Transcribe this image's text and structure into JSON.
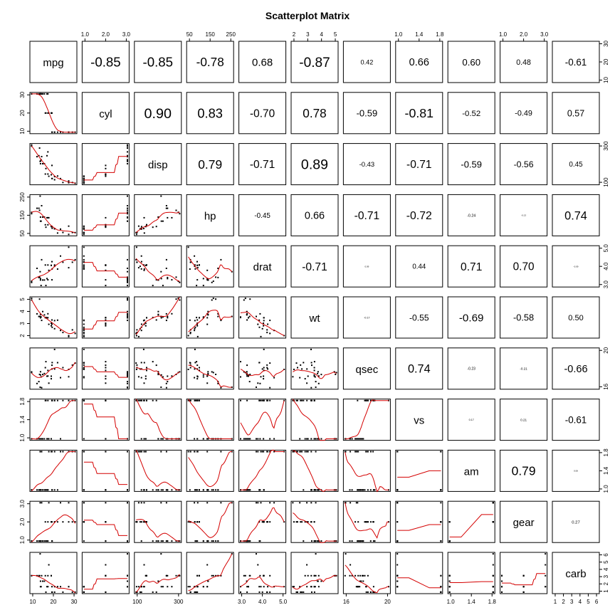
{
  "chart_data": {
    "type": "scatter",
    "title": "Scatterplot Matrix",
    "variables": [
      "mpg",
      "cyl",
      "disp",
      "hp",
      "drat",
      "wt",
      "qsec",
      "vs",
      "am",
      "gear",
      "carb"
    ],
    "correlations": [
      [
        "",
        "-0.85",
        "-0.85",
        "-0.78",
        "0.68",
        "-0.87",
        "0.42",
        "0.66",
        "0.60",
        "0.48",
        "-0.61"
      ],
      [
        "",
        "",
        "0.90",
        "0.83",
        "-0.70",
        "0.78",
        "-0.59",
        "-0.81",
        "-0.52",
        "-0.49",
        "0.57"
      ],
      [
        "",
        "",
        "",
        "0.79",
        "-0.71",
        "0.89",
        "-0.43",
        "-0.71",
        "-0.59",
        "-0.56",
        "0.45"
      ],
      [
        "",
        "",
        "",
        "",
        "-0.45",
        "0.66",
        "-0.71",
        "-0.72",
        "-0.24",
        "-0.13",
        "0.74"
      ],
      [
        "",
        "",
        "",
        "",
        "",
        "-0.71",
        "0.09",
        "0.44",
        "0.71",
        "0.70",
        "-0.09"
      ],
      [
        "",
        "",
        "",
        "",
        "",
        "",
        "-0.17",
        "-0.55",
        "-0.69",
        "-0.58",
        "0.50"
      ],
      [
        "",
        "",
        "",
        "",
        "",
        "",
        "",
        "0.74",
        "-0.23",
        "-0.21",
        "-0.66"
      ],
      [
        "",
        "",
        "",
        "",
        "",
        "",
        "",
        "",
        "0.17",
        "0.21",
        "-0.61"
      ],
      [
        "",
        "",
        "",
        "",
        "",
        "",
        "",
        "",
        "",
        "0.79",
        "0.06"
      ],
      [
        "",
        "",
        "",
        "",
        "",
        "",
        "",
        "",
        "",
        "",
        "0.27"
      ]
    ],
    "axis_ticks": {
      "top": [
        {
          "col": 1,
          "ticks": [
            "1.0",
            "2.0",
            "3.0"
          ]
        },
        {
          "col": 3,
          "ticks": [
            "50",
            "150",
            "250"
          ]
        },
        {
          "col": 5,
          "ticks": [
            "2",
            "3",
            "4",
            "5"
          ]
        },
        {
          "col": 7,
          "ticks": [
            "1.0",
            "1.4",
            "1.8"
          ]
        },
        {
          "col": 9,
          "ticks": [
            "1.0",
            "2.0",
            "3.0"
          ]
        }
      ],
      "bottom": [
        {
          "col": 0,
          "ticks": [
            "10",
            "20",
            "30"
          ]
        },
        {
          "col": 2,
          "ticks": [
            "100",
            "300"
          ]
        },
        {
          "col": 4,
          "ticks": [
            "3.0",
            "4.0",
            "5.0"
          ]
        },
        {
          "col": 6,
          "ticks": [
            "16",
            "20"
          ]
        },
        {
          "col": 8,
          "ticks": [
            "1.0",
            "1.4",
            "1.8"
          ]
        },
        {
          "col": 10,
          "ticks": [
            "1",
            "2",
            "3",
            "4",
            "5",
            "6"
          ]
        }
      ],
      "left": [
        {
          "row": 1,
          "ticks": [
            "10",
            "20",
            "30"
          ]
        },
        {
          "row": 3,
          "ticks": [
            "50",
            "150",
            "250"
          ]
        },
        {
          "row": 5,
          "ticks": [
            "2",
            "3",
            "4",
            "5"
          ]
        },
        {
          "row": 7,
          "ticks": [
            "1.0",
            "1.4",
            "1.8"
          ]
        },
        {
          "row": 9,
          "ticks": [
            "1.0",
            "2.0",
            "3.0"
          ]
        }
      ],
      "right": [
        {
          "row": 0,
          "ticks": [
            "10",
            "20",
            "30"
          ]
        },
        {
          "row": 2,
          "ticks": [
            "100",
            "300"
          ]
        },
        {
          "row": 4,
          "ticks": [
            "3.0",
            "4.0",
            "5.0"
          ]
        },
        {
          "row": 6,
          "ticks": [
            "16",
            "20"
          ]
        },
        {
          "row": 8,
          "ticks": [
            "1.0",
            "1.4",
            "1.8"
          ]
        },
        {
          "row": 10,
          "ticks": [
            "1",
            "2",
            "3",
            "4",
            "5",
            "6"
          ]
        }
      ]
    },
    "colors": {
      "points": "#000000",
      "smoother": "#d40000",
      "frame": "#000000"
    },
    "data": {
      "mpg": [
        21,
        21,
        22.8,
        21.4,
        18.7,
        18.1,
        14.3,
        24.4,
        22.8,
        19.2,
        17.8,
        16.4,
        17.3,
        15.2,
        10.4,
        10.4,
        14.7,
        32.4,
        30.4,
        33.9,
        21.5,
        15.5,
        15.2,
        13.3,
        19.2,
        27.3,
        26,
        30.4,
        15.8,
        19.7,
        15,
        21.4
      ],
      "cyl": [
        6,
        6,
        4,
        6,
        8,
        6,
        8,
        4,
        4,
        6,
        6,
        8,
        8,
        8,
        8,
        8,
        8,
        4,
        4,
        4,
        4,
        8,
        8,
        8,
        8,
        4,
        4,
        4,
        8,
        6,
        8,
        4
      ],
      "disp": [
        160,
        160,
        108,
        258,
        360,
        225,
        360,
        146.7,
        140.8,
        167.6,
        167.6,
        275.8,
        275.8,
        275.8,
        472,
        460,
        440,
        78.7,
        75.7,
        71.1,
        120.1,
        318,
        304,
        350,
        400,
        79,
        120.3,
        95.1,
        351,
        145,
        301,
        121
      ],
      "hp": [
        110,
        110,
        93,
        110,
        175,
        105,
        245,
        62,
        95,
        123,
        123,
        180,
        180,
        180,
        205,
        215,
        230,
        66,
        52,
        65,
        97,
        150,
        150,
        245,
        175,
        66,
        91,
        113,
        264,
        175,
        335,
        109
      ],
      "drat": [
        3.9,
        3.9,
        3.85,
        3.08,
        3.15,
        2.76,
        3.21,
        3.69,
        3.92,
        3.92,
        3.92,
        3.07,
        3.07,
        3.07,
        2.93,
        3,
        3.23,
        4.08,
        4.93,
        4.22,
        3.7,
        2.76,
        3.15,
        3.73,
        3.08,
        4.08,
        4.43,
        3.77,
        4.22,
        3.62,
        3.54,
        4.11
      ],
      "wt": [
        2.62,
        2.875,
        2.32,
        3.215,
        3.44,
        3.46,
        3.57,
        3.19,
        3.15,
        3.44,
        3.44,
        4.07,
        3.73,
        3.78,
        5.25,
        5.424,
        5.345,
        2.2,
        1.615,
        1.835,
        2.465,
        3.52,
        3.435,
        3.84,
        3.845,
        1.935,
        2.14,
        1.513,
        3.17,
        2.77,
        3.57,
        2.78
      ],
      "qsec": [
        16.46,
        17.02,
        18.61,
        19.44,
        17.02,
        20.22,
        15.84,
        20,
        22.9,
        18.3,
        18.9,
        17.4,
        17.6,
        18,
        17.98,
        17.82,
        17.42,
        19.47,
        18.52,
        19.9,
        20.01,
        16.87,
        17.3,
        15.41,
        17.05,
        18.9,
        16.7,
        16.9,
        14.5,
        15.5,
        14.6,
        18.6
      ],
      "vs": [
        0,
        0,
        1,
        1,
        0,
        1,
        0,
        1,
        1,
        1,
        1,
        0,
        0,
        0,
        0,
        0,
        0,
        1,
        1,
        1,
        1,
        0,
        0,
        0,
        0,
        1,
        0,
        1,
        0,
        0,
        0,
        1
      ],
      "am": [
        1,
        1,
        1,
        0,
        0,
        0,
        0,
        0,
        0,
        0,
        0,
        0,
        0,
        0,
        0,
        0,
        0,
        1,
        1,
        1,
        0,
        0,
        0,
        0,
        0,
        1,
        1,
        1,
        1,
        1,
        1,
        1
      ],
      "gear": [
        4,
        4,
        4,
        3,
        3,
        3,
        3,
        4,
        4,
        4,
        4,
        3,
        3,
        3,
        3,
        3,
        3,
        4,
        4,
        4,
        3,
        3,
        3,
        3,
        3,
        4,
        5,
        5,
        5,
        5,
        5,
        4
      ],
      "carb": [
        4,
        4,
        1,
        1,
        2,
        1,
        4,
        2,
        2,
        4,
        4,
        3,
        3,
        3,
        4,
        4,
        4,
        1,
        2,
        1,
        1,
        2,
        2,
        4,
        2,
        1,
        2,
        2,
        4,
        6,
        8,
        2
      ]
    }
  }
}
